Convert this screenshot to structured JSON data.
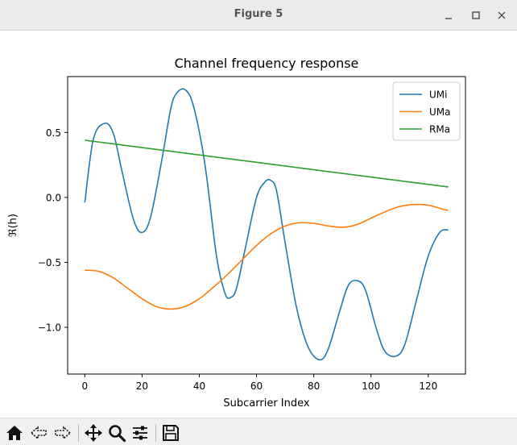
{
  "window": {
    "title": "Figure 5"
  },
  "toolbar": {
    "icons": [
      "home-icon",
      "back-arrow-icon",
      "forward-arrow-icon",
      "pan-move-icon",
      "zoom-magnifier-icon",
      "configure-subplots-icon",
      "save-floppy-icon"
    ]
  },
  "chart_data": {
    "type": "line",
    "title": "Channel frequency response",
    "xlabel": "Subcarrier Index",
    "ylabel": "ℜ(h)",
    "xlim": [
      -6,
      133
    ],
    "ylim": [
      -1.36,
      0.93
    ],
    "xticks": [
      0,
      20,
      40,
      60,
      80,
      100,
      120
    ],
    "xtick_labels": [
      "0",
      "20",
      "40",
      "60",
      "80",
      "100",
      "120"
    ],
    "yticks": [
      -1.0,
      -0.5,
      0.0,
      0.5
    ],
    "ytick_labels": [
      "−1.0",
      "−0.5",
      "0.0",
      "0.5"
    ],
    "grid": false,
    "legend": "top-right",
    "series": [
      {
        "name": "UMi",
        "color": "#1f77b4",
        "x": [
          0,
          3,
          7,
          10,
          13,
          17,
          20,
          23,
          27,
          30,
          32,
          35,
          38,
          42,
          46,
          49,
          51,
          53,
          56,
          60,
          63,
          65,
          67,
          70,
          74,
          78,
          82,
          85,
          89,
          92,
          95,
          98,
          102,
          105,
          109,
          112,
          116,
          120,
          124,
          127
        ],
        "y": [
          -0.04,
          0.45,
          0.57,
          0.49,
          0.2,
          -0.17,
          -0.27,
          -0.15,
          0.3,
          0.68,
          0.8,
          0.83,
          0.7,
          0.25,
          -0.45,
          -0.74,
          -0.77,
          -0.7,
          -0.4,
          0.0,
          0.12,
          0.13,
          0.05,
          -0.35,
          -0.85,
          -1.15,
          -1.25,
          -1.17,
          -0.88,
          -0.68,
          -0.64,
          -0.71,
          -1.02,
          -1.19,
          -1.22,
          -1.12,
          -0.78,
          -0.45,
          -0.27,
          -0.25
        ]
      },
      {
        "name": "UMa",
        "color": "#ff7f0e",
        "x": [
          0,
          5,
          10,
          15,
          20,
          25,
          30,
          35,
          40,
          45,
          50,
          55,
          60,
          65,
          70,
          75,
          80,
          85,
          90,
          95,
          100,
          105,
          110,
          115,
          120,
          125,
          127
        ],
        "y": [
          -0.56,
          -0.57,
          -0.62,
          -0.7,
          -0.78,
          -0.84,
          -0.86,
          -0.84,
          -0.78,
          -0.69,
          -0.59,
          -0.48,
          -0.37,
          -0.28,
          -0.22,
          -0.195,
          -0.2,
          -0.22,
          -0.23,
          -0.21,
          -0.16,
          -0.11,
          -0.07,
          -0.055,
          -0.06,
          -0.09,
          -0.1
        ]
      },
      {
        "name": "RMa",
        "color": "#2ca02c",
        "x": [
          0,
          127
        ],
        "y": [
          0.44,
          0.08
        ]
      }
    ]
  }
}
